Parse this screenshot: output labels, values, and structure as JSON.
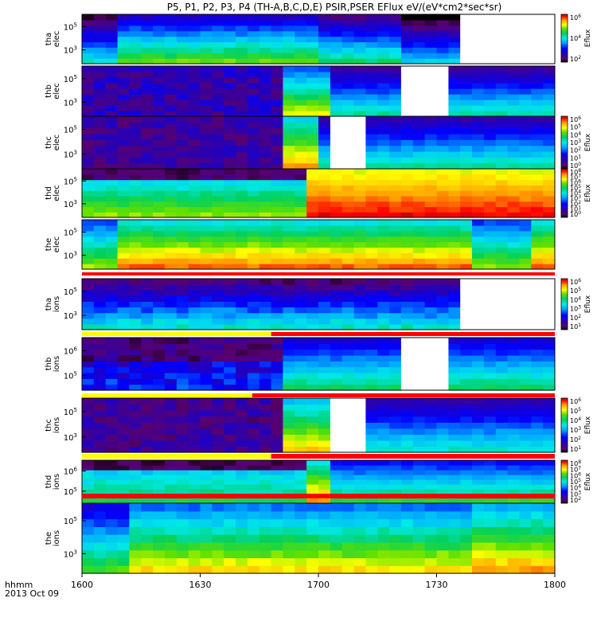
{
  "title": "P5, P1, P2, P3, P4 (TH-A,B,C,D,E) PSIR,PSER EFlux eV/(eV*cm2*sec*sr)",
  "time_labels": {
    "units": "hhmm",
    "date": "2013 Oct 09"
  },
  "colorbar_label": "Eflux",
  "chart_data": {
    "type": "heatmap",
    "title": "P5, P1, P2, P3, P4 (TH-A,B,C,D,E) PSIR,PSER EFlux eV/(eV*cm2*sec*sr)",
    "x": {
      "label": "hhmm",
      "ticks": [
        "1600",
        "1630",
        "1700",
        "1730",
        "1800"
      ],
      "range": [
        "16:00",
        "18:00"
      ]
    },
    "date": "2013 Oct 09",
    "panels": [
      {
        "name": "tha elec",
        "line1": "tha",
        "line2": "elec",
        "yticks": [
          {
            "base": "10",
            "exp": "5"
          },
          {
            "base": "10",
            "exp": "3"
          }
        ],
        "colorbar": [
          "10^6",
          "10^4",
          "10^2"
        ],
        "pattern": "tha_elec"
      },
      {
        "name": "thb elec",
        "line1": "thb",
        "line2": "elec",
        "yticks": [
          {
            "base": "10",
            "exp": "5"
          },
          {
            "base": "10",
            "exp": "3"
          }
        ],
        "colorbar": [],
        "pattern": "thb_elec"
      },
      {
        "name": "thc elec",
        "line1": "thc",
        "line2": "elec",
        "yticks": [
          {
            "base": "10",
            "exp": "5"
          },
          {
            "base": "10",
            "exp": "3"
          }
        ],
        "colorbar": [
          "10^6",
          "10^5",
          "10^4",
          "10^3",
          "10^2",
          "10^1",
          "10^0"
        ],
        "pattern": "thc_elec"
      },
      {
        "name": "thd elec",
        "line1": "thd",
        "line2": "elec",
        "yticks": [
          {
            "base": "10",
            "exp": "5"
          },
          {
            "base": "10",
            "exp": "3"
          }
        ],
        "colorbar": [
          "10^8",
          "10^7",
          "10^6",
          "10^5",
          "10^4",
          "10^3",
          "10^2",
          "10^1",
          "10^0"
        ],
        "pattern": "thd_elec"
      },
      {
        "name": "the elec",
        "line1": "the",
        "line2": "elec",
        "yticks": [
          {
            "base": "10",
            "exp": "5"
          },
          {
            "base": "10",
            "exp": "3"
          }
        ],
        "colorbar": [],
        "pattern": "the_elec"
      },
      {
        "name": "tha ions",
        "line1": "tha",
        "line2": "ions",
        "yticks": [
          {
            "base": "10",
            "exp": "5"
          },
          {
            "base": "10",
            "exp": "3"
          }
        ],
        "colorbar": [
          "10^6",
          "10^5",
          "10^4",
          "10^3",
          "10^2",
          "10^1"
        ],
        "pattern": "tha_ions"
      },
      {
        "name": "thb ions",
        "line1": "thb",
        "line2": "ions",
        "yticks": [
          {
            "base": "10",
            "exp": "6"
          },
          {
            "base": "10",
            "exp": "5"
          }
        ],
        "colorbar": [],
        "pattern": "thb_ions"
      },
      {
        "name": "thc ions",
        "line1": "thc",
        "line2": "ions",
        "yticks": [
          {
            "base": "10",
            "exp": "5"
          },
          {
            "base": "10",
            "exp": "3"
          }
        ],
        "colorbar": [
          "10^6",
          "10^5",
          "10^4",
          "10^3",
          "10^2",
          "10^1"
        ],
        "pattern": "thc_ions"
      },
      {
        "name": "thd ions",
        "line1": "thd",
        "line2": "ions",
        "yticks": [
          {
            "base": "10",
            "exp": "6"
          },
          {
            "base": "10",
            "exp": "5"
          }
        ],
        "colorbar": [
          "10^8",
          "10^7",
          "10^6",
          "10^5",
          "10^4",
          "10^3",
          "10^2"
        ],
        "pattern": "thd_ions"
      },
      {
        "name": "the ions",
        "line1": "the",
        "line2": "ions",
        "yticks": [
          {
            "base": "10",
            "exp": "5"
          },
          {
            "base": "10",
            "exp": "3"
          }
        ],
        "colorbar": [],
        "pattern": "the_ions"
      }
    ],
    "data_gaps": [
      {
        "panel": "tha elec",
        "from": "17:35",
        "to": "18:00"
      },
      {
        "panel": "thb elec",
        "from": "17:21",
        "to": "17:32"
      },
      {
        "panel": "thc elec",
        "from": "17:03",
        "to": "17:13"
      },
      {
        "panel": "tha ions",
        "from": "17:35",
        "to": "18:00"
      },
      {
        "panel": "thb ions",
        "from": "17:21",
        "to": "17:32"
      },
      {
        "panel": "thc ions",
        "from": "17:03",
        "to": "17:13"
      }
    ]
  }
}
